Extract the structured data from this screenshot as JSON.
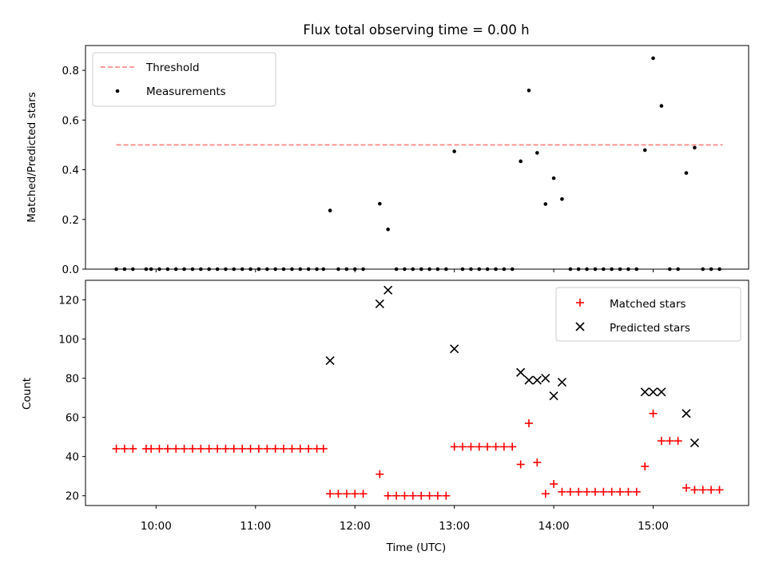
{
  "chart_data": [
    {
      "type": "scatter",
      "title": "Flux total observing time = 0.00 h",
      "xlabel": "",
      "ylabel": "Matched/Predicted stars",
      "xlim_hours": [
        9.29,
        15.96
      ],
      "ylim": [
        0,
        0.9
      ],
      "yticks": [
        0.0,
        0.2,
        0.4,
        0.6,
        0.8
      ],
      "ytick_labels": [
        "0.0",
        "0.2",
        "0.4",
        "0.6",
        "0.8"
      ],
      "grid": false,
      "legend_position": "upper-left",
      "threshold": {
        "name": "Threshold",
        "value": 0.5,
        "x_range": [
          9.6,
          15.7
        ],
        "color": "#ff7f7f"
      },
      "series": [
        {
          "name": "Measurements",
          "color": "#000000",
          "x": [
            9.6,
            9.683,
            9.767,
            9.9,
            9.95,
            10.033,
            10.117,
            10.2,
            10.283,
            10.367,
            10.45,
            10.533,
            10.617,
            10.7,
            10.783,
            10.867,
            10.95,
            11.033,
            11.117,
            11.2,
            11.283,
            11.367,
            11.45,
            11.533,
            11.617,
            11.683,
            11.75,
            11.833,
            11.917,
            12.0,
            12.083,
            12.25,
            12.333,
            12.417,
            12.5,
            12.583,
            12.667,
            12.75,
            12.833,
            12.917,
            13.0,
            13.083,
            13.167,
            13.25,
            13.333,
            13.417,
            13.5,
            13.583,
            13.667,
            13.75,
            13.833,
            13.917,
            14.0,
            14.083,
            14.167,
            14.25,
            14.333,
            14.417,
            14.5,
            14.583,
            14.667,
            14.75,
            14.833,
            14.917,
            15.0,
            15.083,
            15.167,
            15.25,
            15.333,
            15.417,
            15.5,
            15.583,
            15.667
          ],
          "y": [
            0,
            0,
            0,
            0,
            0,
            0,
            0,
            0,
            0,
            0,
            0,
            0,
            0,
            0,
            0,
            0,
            0,
            0,
            0,
            0,
            0,
            0,
            0,
            0,
            0,
            0,
            0.236,
            0,
            0,
            0,
            0,
            0.263,
            0.16,
            0,
            0,
            0,
            0,
            0,
            0,
            0,
            0.474,
            0,
            0,
            0,
            0,
            0,
            0,
            0,
            0.434,
            0.719,
            0.468,
            0.262,
            0.366,
            0.282,
            0,
            0,
            0,
            0,
            0,
            0,
            0,
            0,
            0,
            0.479,
            0.849,
            0.657,
            0,
            0,
            0.387,
            0.489,
            0,
            0,
            0
          ]
        }
      ]
    },
    {
      "type": "scatter",
      "title": "",
      "xlabel": "Time (UTC)",
      "ylabel": "Count",
      "xlim_hours": [
        9.29,
        15.96
      ],
      "xticks_hours": [
        10,
        11,
        12,
        13,
        14,
        15
      ],
      "xtick_labels": [
        "10:00",
        "11:00",
        "12:00",
        "13:00",
        "14:00",
        "15:00"
      ],
      "ylim": [
        15,
        130
      ],
      "yticks": [
        20,
        40,
        60,
        80,
        100,
        120
      ],
      "ytick_labels": [
        "20",
        "40",
        "60",
        "80",
        "100",
        "120"
      ],
      "grid": false,
      "legend_position": "upper-right",
      "series": [
        {
          "name": "Matched stars",
          "marker": "plus",
          "color": "#ff0000",
          "x": [
            9.6,
            9.683,
            9.767,
            9.9,
            9.95,
            10.033,
            10.117,
            10.2,
            10.283,
            10.367,
            10.45,
            10.533,
            10.617,
            10.7,
            10.783,
            10.867,
            10.95,
            11.033,
            11.117,
            11.2,
            11.283,
            11.367,
            11.45,
            11.533,
            11.617,
            11.683,
            11.75,
            11.833,
            11.917,
            12.0,
            12.083,
            12.25,
            12.333,
            12.417,
            12.5,
            12.583,
            12.667,
            12.75,
            12.833,
            12.917,
            13.0,
            13.083,
            13.167,
            13.25,
            13.333,
            13.417,
            13.5,
            13.583,
            13.667,
            13.75,
            13.833,
            13.917,
            14.0,
            14.083,
            14.167,
            14.25,
            14.333,
            14.417,
            14.5,
            14.583,
            14.667,
            14.75,
            14.833,
            14.917,
            15.0,
            15.083,
            15.167,
            15.25,
            15.333,
            15.417,
            15.5,
            15.583,
            15.667
          ],
          "y": [
            44,
            44,
            44,
            44,
            44,
            44,
            44,
            44,
            44,
            44,
            44,
            44,
            44,
            44,
            44,
            44,
            44,
            44,
            44,
            44,
            44,
            44,
            44,
            44,
            44,
            44,
            21,
            21,
            21,
            21,
            21,
            31,
            20,
            20,
            20,
            20,
            20,
            20,
            20,
            20,
            45,
            45,
            45,
            45,
            45,
            45,
            45,
            45,
            36,
            57,
            37,
            21,
            26,
            22,
            22,
            22,
            22,
            22,
            22,
            22,
            22,
            22,
            22,
            35,
            62,
            48,
            48,
            48,
            24,
            23,
            23,
            23,
            23
          ]
        },
        {
          "name": "Predicted stars",
          "marker": "x",
          "color": "#000000",
          "x": [
            11.75,
            12.25,
            12.333,
            13.0,
            13.667,
            13.75,
            13.833,
            13.917,
            14.0,
            14.083,
            14.917,
            15.0,
            15.083,
            15.333,
            15.417
          ],
          "y": [
            89,
            118,
            125,
            95,
            83,
            79,
            79,
            80,
            71,
            78,
            73,
            73,
            73,
            62,
            47
          ]
        }
      ]
    }
  ]
}
